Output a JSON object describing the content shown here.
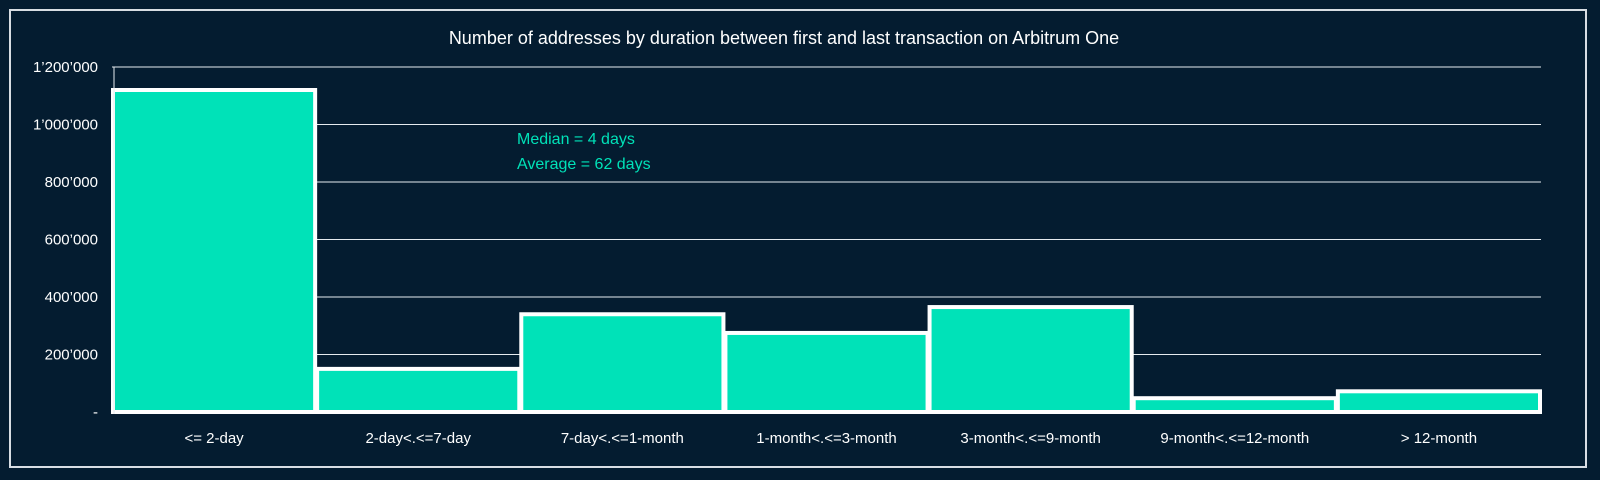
{
  "chart_data": {
    "type": "bar",
    "title": "Number of addresses by duration between first and last transaction on Arbitrum One",
    "xlabel": "",
    "ylabel": "",
    "categories": [
      "<= 2-day",
      "2-day<.<=7-day",
      "7-day<.<=1-month",
      "1-month<.<=3-month",
      "3-month<.<=9-month",
      "9-month<.<=12-month",
      "> 12-month"
    ],
    "values": [
      1120000,
      150000,
      340000,
      275000,
      365000,
      48000,
      72000
    ],
    "ylim": [
      0,
      1200000
    ],
    "yticks": [
      0,
      200000,
      400000,
      600000,
      800000,
      1000000,
      1200000
    ],
    "ytick_labels": [
      "-",
      "200’000",
      "400’000",
      "600’000",
      "800’000",
      "1’000’000",
      "1’200’000"
    ],
    "grid": true,
    "annotations": [
      "Median = 4 days",
      "Average = 62 days"
    ],
    "colors": {
      "bar": "#00e2b8",
      "bar_edge": "#ffffff",
      "background": "#041c30",
      "annotation": "#00e2b8",
      "text": "#ffffff"
    }
  }
}
